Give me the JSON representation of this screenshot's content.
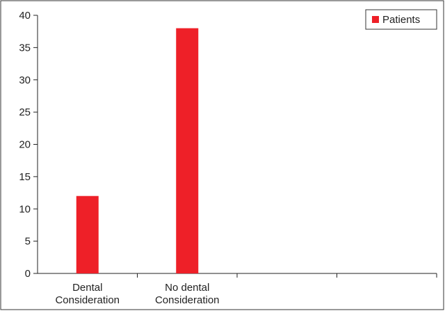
{
  "chart_data": {
    "type": "bar",
    "categories": [
      [
        "Dental",
        "Consideration"
      ],
      [
        "No dental",
        "Consideration"
      ],
      [
        "",
        ""
      ],
      [
        "",
        ""
      ]
    ],
    "series": [
      {
        "name": "Patients",
        "values": [
          12,
          38,
          null,
          null
        ],
        "color": "#ee2028"
      }
    ],
    "ylim": [
      0,
      40
    ],
    "yticks": [
      0,
      5,
      10,
      15,
      20,
      25,
      30,
      35,
      40
    ],
    "legend_position": "top-right",
    "grid": false
  }
}
